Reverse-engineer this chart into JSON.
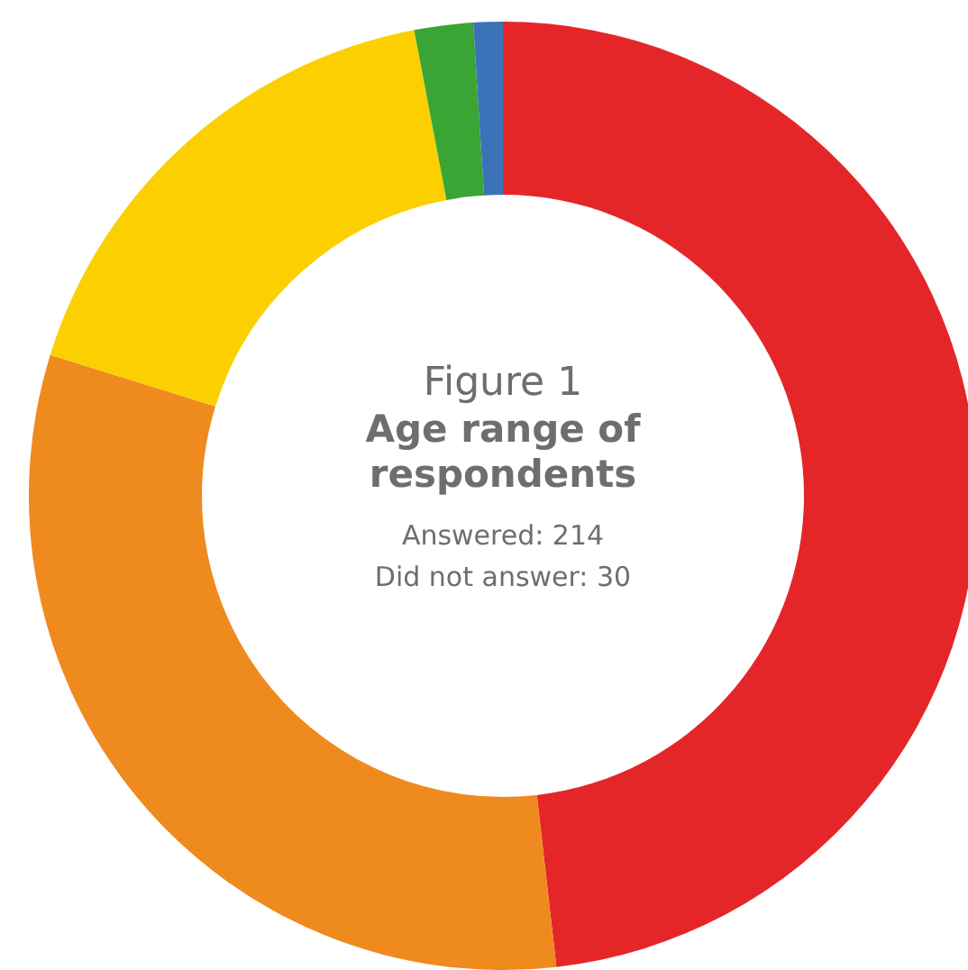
{
  "chart_data": {
    "type": "donut",
    "title": "Figure 1",
    "subtitle": "Age range of respondents",
    "categories": [
      null,
      null,
      null,
      null,
      null
    ],
    "values": [
      48.2,
      31.6,
      17.2,
      2.0,
      1.0
    ],
    "colors": [
      "#e52629",
      "#ef8a1f",
      "#fcd000",
      "#3aa535",
      "#3b73b9"
    ],
    "annotations": [
      "Answered: 214",
      "Did not answer: 30"
    ],
    "legend": false
  }
}
